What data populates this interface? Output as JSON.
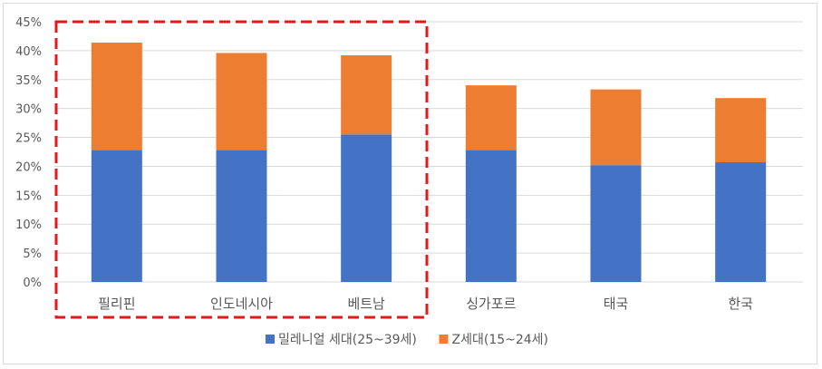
{
  "chart_data": {
    "type": "bar",
    "stacked": true,
    "categories": [
      "필리핀",
      "인도네시아",
      "베트남",
      "싱가포르",
      "태국",
      "한국"
    ],
    "series": [
      {
        "name": "밀레니얼 세대(25~39세)",
        "color": "#4472C4",
        "values": [
          22.8,
          22.8,
          25.5,
          22.8,
          20.2,
          20.7
        ]
      },
      {
        "name": "Z세대(15~24세)",
        "color": "#ED7D31",
        "values": [
          18.6,
          16.8,
          13.7,
          11.2,
          13.1,
          11.1
        ]
      }
    ],
    "ylim": [
      0,
      45
    ],
    "yticks": [
      "0%",
      "5%",
      "10%",
      "15%",
      "20%",
      "25%",
      "30%",
      "35%",
      "40%",
      "45%"
    ],
    "grid": true,
    "legend_position": "bottom",
    "highlight": {
      "categories": [
        "필리핀",
        "인도네시아",
        "베트남"
      ],
      "style": "red dashed box",
      "color": "#E31A1C"
    }
  }
}
